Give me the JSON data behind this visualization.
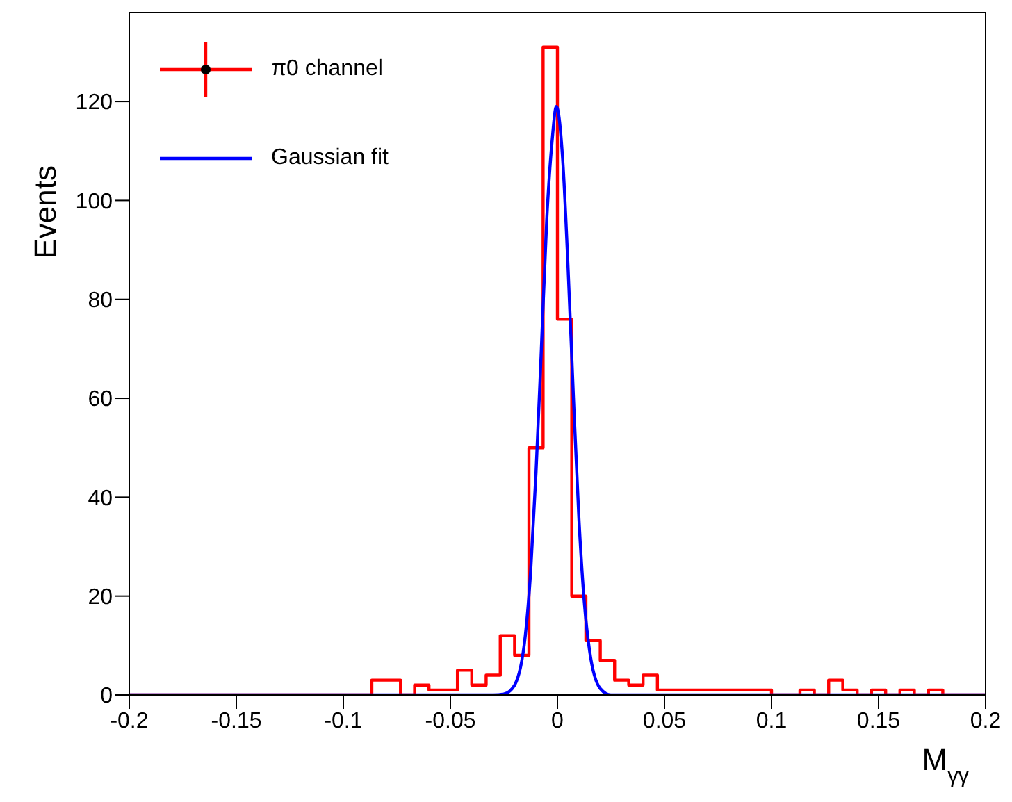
{
  "chart_data": {
    "type": "histogram",
    "xlabel": "M$_{γγ}$",
    "ylabel": "Events",
    "bins": [
      -0.2,
      -0.1933,
      -0.1867,
      -0.18,
      -0.1733,
      -0.1667,
      -0.16,
      -0.1533,
      -0.1467,
      -0.14,
      -0.1333,
      -0.1267,
      -0.12,
      -0.1133,
      -0.1067,
      -0.1,
      -0.0933,
      -0.0867,
      -0.08,
      -0.0733,
      -0.0667,
      -0.06,
      -0.0533,
      -0.0467,
      -0.04,
      -0.0333,
      -0.0267,
      -0.02,
      -0.0133,
      -0.0067,
      0,
      0.0067,
      0.0133,
      0.02,
      0.0267,
      0.0333,
      0.04,
      0.0467,
      0.0533,
      0.06,
      0.0667,
      0.0733,
      0.08,
      0.0867,
      0.0933,
      0.1,
      0.1067,
      0.1133,
      0.12,
      0.1267,
      0.1333,
      0.14,
      0.1467,
      0.1533,
      0.16,
      0.1667,
      0.1733,
      0.18,
      0.1867,
      0.1933,
      0.2
    ],
    "series": [
      {
        "name": "π0 channel",
        "color": "#ff0000",
        "values": [
          0,
          0,
          0,
          0,
          0,
          0,
          0,
          0,
          0,
          0,
          0,
          0,
          0,
          0,
          0,
          0,
          0,
          3,
          3,
          0,
          2,
          1,
          1,
          5,
          2,
          4,
          12,
          8,
          50,
          131,
          76,
          20,
          11,
          7,
          3,
          2,
          4,
          1,
          1,
          1,
          1,
          1,
          1,
          1,
          1,
          0,
          0,
          1,
          0,
          3,
          1,
          0,
          1,
          0,
          1,
          0,
          1,
          0,
          0,
          0
        ]
      },
      {
        "name": "Gaussian fit",
        "type": "line",
        "color": "#0000ff",
        "x": [
          -0.2,
          -0.03,
          -0.025,
          -0.02,
          -0.015,
          -0.0125,
          -0.01,
          -0.0075,
          -0.005,
          -0.0025,
          -0.0005,
          0.0025,
          0.005,
          0.0075,
          0.01,
          0.0125,
          0.015,
          0.02,
          0.025,
          0.03,
          0.2
        ],
        "values": [
          0,
          0,
          0.2,
          2,
          12,
          25,
          45,
          70,
          96,
          112,
          119,
          108,
          86,
          60,
          36,
          19,
          9,
          1.3,
          0,
          0,
          0
        ]
      }
    ],
    "xlim": [
      -0.2,
      0.2
    ],
    "xticks": [
      -0.2,
      -0.15,
      -0.1,
      -0.05,
      0,
      0.05,
      0.1,
      0.15,
      0.2
    ],
    "ylim": [
      0,
      138
    ],
    "yticks": [
      0,
      20,
      40,
      60,
      80,
      100,
      120
    ],
    "legend": "top left"
  }
}
